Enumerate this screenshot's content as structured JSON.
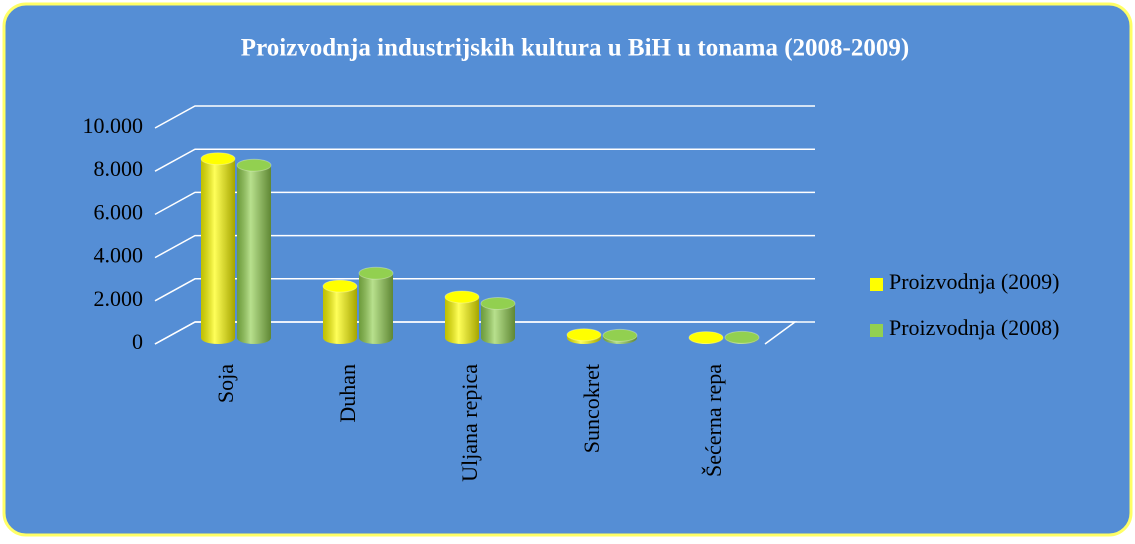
{
  "chart_data": {
    "type": "bar",
    "title": "Proizvodnja industrijskih kultura u BiH u tonama  (2008-2009)",
    "categories": [
      "Soja",
      "Duhan",
      "Uljana repica",
      "Suncokret",
      "Šećerna repa"
    ],
    "series": [
      {
        "name": "Proizvodnja (2009)",
        "color": "#ffff00",
        "values": [
          8300,
          2400,
          1900,
          150,
          20
        ]
      },
      {
        "name": "Proizvodnja (2008)",
        "color": "#92d050",
        "values": [
          8000,
          3000,
          1600,
          120,
          30
        ]
      }
    ],
    "ylim": [
      0,
      10000
    ],
    "yticks": [
      0,
      {
        "value": 2000,
        "label": "2.000"
      },
      {
        "value": 4000,
        "label": "4.000"
      },
      {
        "value": 6000,
        "label": "6.000"
      },
      {
        "value": 8000,
        "label": "8.000"
      },
      {
        "value": 10000,
        "label": "10.000"
      }
    ],
    "grid": true,
    "legend": "right"
  }
}
